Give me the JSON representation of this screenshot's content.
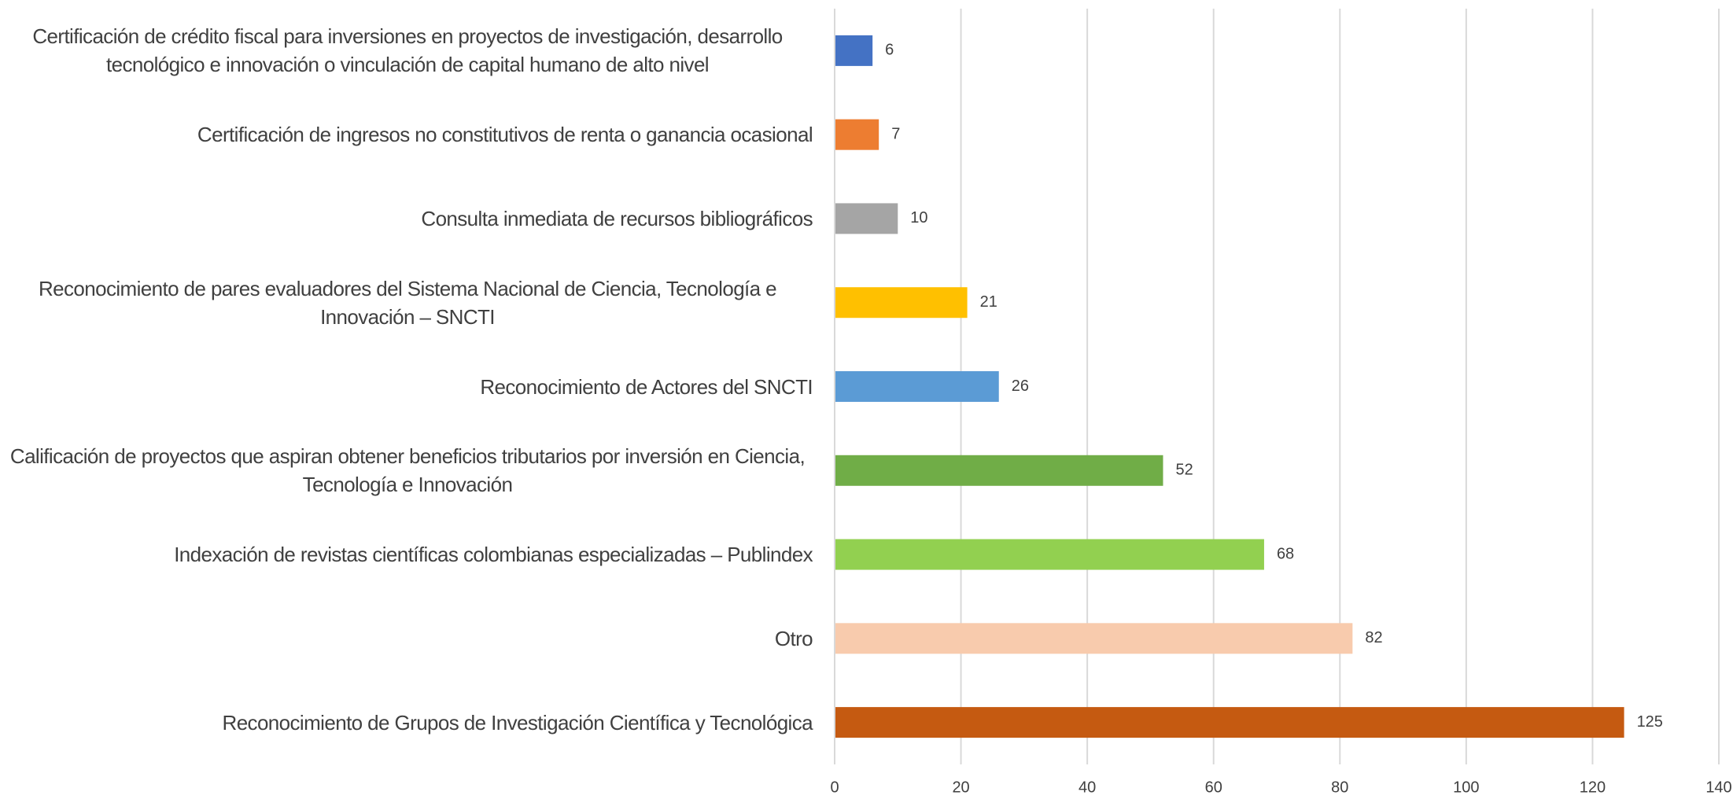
{
  "chart_data": {
    "type": "bar",
    "orientation": "horizontal",
    "categories": [
      "Certificación de crédito fiscal para inversiones en proyectos de investigación, desarrollo tecnológico e innovación o vinculación de capital humano de alto nivel",
      "Certificación de ingresos no constitutivos de renta o ganancia ocasional",
      "Consulta inmediata de recursos bibliográficos",
      "Reconocimiento de pares evaluadores del Sistema Nacional de Ciencia, Tecnología e Innovación – SNCTI",
      "Reconocimiento de Actores del SNCTI",
      "Calificación de proyectos que aspiran obtener beneficios tributarios por inversión en Ciencia, Tecnología e Innovación",
      "Indexación de revistas científicas colombianas especializadas – Publindex",
      "Otro",
      "Reconocimiento de Grupos de Investigación Científica y Tecnológica"
    ],
    "values": [
      6,
      7,
      10,
      21,
      26,
      52,
      68,
      82,
      125
    ],
    "colors": [
      "#4472c4",
      "#ed7d31",
      "#a5a5a5",
      "#ffc000",
      "#5b9bd5",
      "#70ad47",
      "#92d050",
      "#f8cbad",
      "#c55a11"
    ],
    "xlim": [
      0,
      140
    ],
    "xticks": [
      0,
      20,
      40,
      60,
      80,
      100,
      120,
      140
    ],
    "grid": true
  }
}
